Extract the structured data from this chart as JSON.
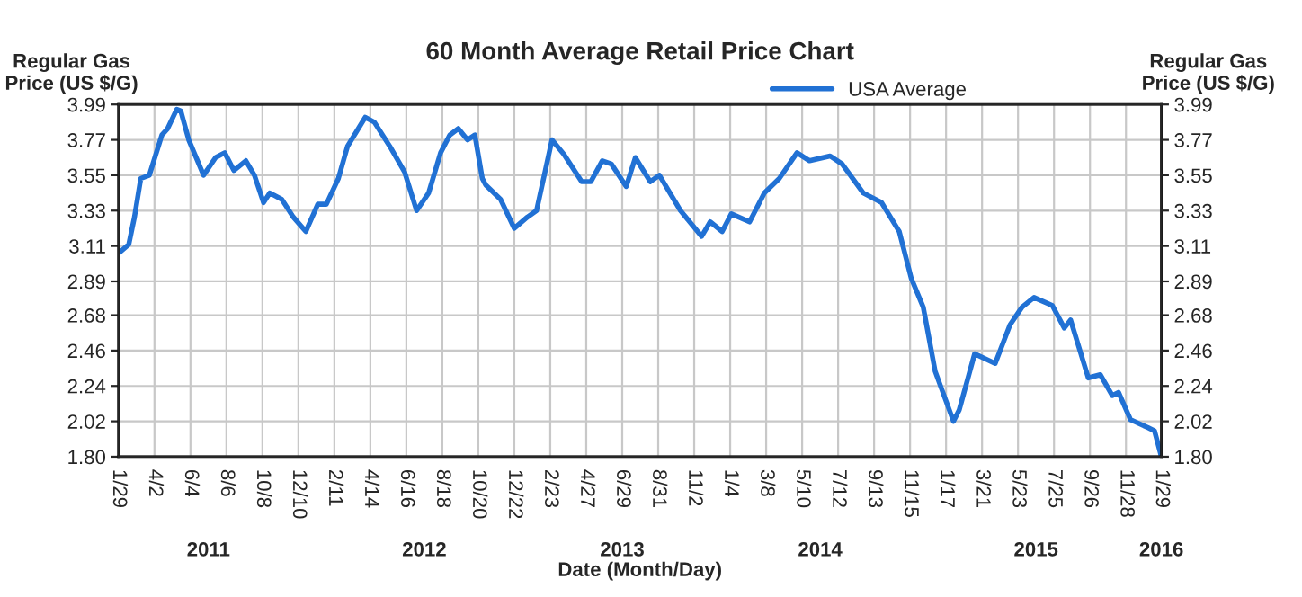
{
  "chart_data": {
    "type": "line",
    "title": "60 Month Average Retail Price Chart",
    "xlabel": "Date (Month/Day)",
    "ylabel": "Regular Gas\nPrice (US $/G)",
    "y2label": "Regular Gas\nPrice (US $/G)",
    "x": [
      "2011-01-31",
      "2011-02-16",
      "2011-02-26",
      "2011-03-09",
      "2011-03-24",
      "2011-04-15",
      "2011-04-25",
      "2011-05-11",
      "2011-05-18",
      "2011-06-01",
      "2011-06-27",
      "2011-07-18",
      "2011-08-03",
      "2011-08-19",
      "2011-09-09",
      "2011-09-24",
      "2011-10-10",
      "2011-10-21",
      "2011-11-11",
      "2011-12-01",
      "2011-12-23",
      "2012-01-13",
      "2012-01-28",
      "2012-02-18",
      "2012-03-05",
      "2012-04-05",
      "2012-04-21",
      "2012-05-18",
      "2012-06-13",
      "2012-07-04",
      "2012-07-25",
      "2012-08-15",
      "2012-08-31",
      "2012-09-15",
      "2012-10-01",
      "2012-10-14",
      "2012-10-27",
      "2012-11-02",
      "2012-11-28",
      "2012-12-22",
      "2013-01-14",
      "2013-01-30",
      "2013-02-26",
      "2013-03-19",
      "2013-04-19",
      "2013-05-05",
      "2013-05-25",
      "2013-06-10",
      "2013-07-06",
      "2013-07-22",
      "2013-08-17",
      "2013-09-02",
      "2013-10-09",
      "2013-11-15",
      "2013-11-30",
      "2013-12-21",
      "2014-01-06",
      "2014-02-07",
      "2014-03-05",
      "2014-03-31",
      "2014-05-01",
      "2014-05-23",
      "2014-06-28",
      "2014-07-19",
      "2014-08-25",
      "2014-09-26",
      "2014-10-27",
      "2014-11-17",
      "2014-12-08",
      "2014-12-29",
      "2015-01-30",
      "2015-02-09",
      "2015-03-08",
      "2015-04-13",
      "2015-05-09",
      "2015-05-30",
      "2015-06-20",
      "2015-07-22",
      "2015-08-12",
      "2015-08-23",
      "2015-09-23",
      "2015-10-14",
      "2015-11-04",
      "2015-11-15",
      "2015-12-06",
      "2016-01-06",
      "2016-01-17",
      "2016-01-29"
    ],
    "series": [
      {
        "name": "USA Average",
        "color": "#2171d4",
        "values": [
          3.07,
          3.12,
          3.29,
          3.53,
          3.55,
          3.8,
          3.84,
          3.96,
          3.95,
          3.77,
          3.55,
          3.66,
          3.69,
          3.58,
          3.64,
          3.55,
          3.38,
          3.44,
          3.4,
          3.29,
          3.2,
          3.37,
          3.37,
          3.53,
          3.73,
          3.91,
          3.88,
          3.73,
          3.57,
          3.33,
          3.44,
          3.69,
          3.8,
          3.84,
          3.77,
          3.8,
          3.53,
          3.49,
          3.4,
          3.22,
          3.29,
          3.33,
          3.77,
          3.68,
          3.51,
          3.51,
          3.64,
          3.62,
          3.48,
          3.66,
          3.51,
          3.55,
          3.33,
          3.17,
          3.26,
          3.2,
          3.31,
          3.26,
          3.44,
          3.53,
          3.69,
          3.64,
          3.67,
          3.62,
          3.44,
          3.38,
          3.2,
          2.91,
          2.73,
          2.33,
          2.02,
          2.09,
          2.44,
          2.38,
          2.62,
          2.73,
          2.79,
          2.74,
          2.6,
          2.65,
          2.29,
          2.31,
          2.18,
          2.2,
          2.03,
          1.98,
          1.96,
          1.8
        ]
      }
    ],
    "xlim": [
      "2011-01-29",
      "2016-01-29"
    ],
    "xticks": [
      {
        "value": "2011-01-29",
        "label": "1/29"
      },
      {
        "value": "2011-04-02",
        "label": "4/2"
      },
      {
        "value": "2011-06-04",
        "label": "6/4"
      },
      {
        "value": "2011-08-06",
        "label": "8/6"
      },
      {
        "value": "2011-10-08",
        "label": "10/8"
      },
      {
        "value": "2011-12-10",
        "label": "12/10"
      },
      {
        "value": "2012-02-11",
        "label": "2/11"
      },
      {
        "value": "2012-04-14",
        "label": "4/14"
      },
      {
        "value": "2012-06-16",
        "label": "6/16"
      },
      {
        "value": "2012-08-18",
        "label": "8/18"
      },
      {
        "value": "2012-10-20",
        "label": "10/20"
      },
      {
        "value": "2012-12-22",
        "label": "12/22"
      },
      {
        "value": "2013-02-23",
        "label": "2/23"
      },
      {
        "value": "2013-04-27",
        "label": "4/27"
      },
      {
        "value": "2013-06-29",
        "label": "6/29"
      },
      {
        "value": "2013-08-31",
        "label": "8/31"
      },
      {
        "value": "2013-11-02",
        "label": "11/2"
      },
      {
        "value": "2014-01-04",
        "label": "1/4"
      },
      {
        "value": "2014-03-08",
        "label": "3/8"
      },
      {
        "value": "2014-05-10",
        "label": "5/10"
      },
      {
        "value": "2014-07-12",
        "label": "7/12"
      },
      {
        "value": "2014-09-13",
        "label": "9/13"
      },
      {
        "value": "2014-11-15",
        "label": "11/15"
      },
      {
        "value": "2015-01-17",
        "label": "1/17"
      },
      {
        "value": "2015-03-21",
        "label": "3/21"
      },
      {
        "value": "2015-05-23",
        "label": "5/23"
      },
      {
        "value": "2015-07-25",
        "label": "7/25"
      },
      {
        "value": "2015-09-26",
        "label": "9/26"
      },
      {
        "value": "2015-11-28",
        "label": "11/28"
      },
      {
        "value": "2016-01-29",
        "label": "1/29"
      }
    ],
    "ylim": [
      1.8,
      3.99
    ],
    "yticks": [
      {
        "value": 1.8,
        "label": "1.80"
      },
      2.02,
      2.24,
      2.46,
      2.68,
      2.89,
      3.11,
      3.33,
      3.55,
      3.77,
      3.99
    ],
    "y2lim": [
      1.8,
      3.99
    ],
    "y2ticks": [
      {
        "value": 1.8,
        "label": "1.80"
      },
      2.02,
      2.24,
      2.46,
      2.68,
      2.89,
      3.11,
      3.33,
      3.55,
      3.77,
      3.99
    ],
    "annotations": [
      "2011",
      "2012",
      "2013",
      "2014",
      "2015",
      "2016"
    ],
    "grid": true,
    "legend": "top right",
    "marker": "none",
    "line_style": "solid"
  }
}
